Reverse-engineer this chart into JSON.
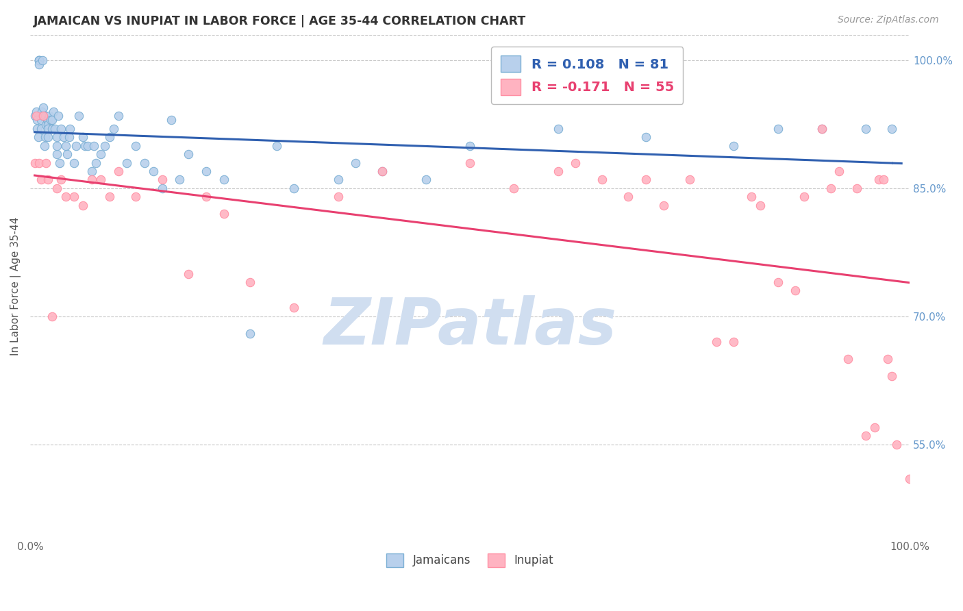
{
  "title": "JAMAICAN VS INUPIAT IN LABOR FORCE | AGE 35-44 CORRELATION CHART",
  "source": "Source: ZipAtlas.com",
  "ylabel": "In Labor Force | Age 35-44",
  "xlim": [
    0.0,
    1.0
  ],
  "ylim": [
    0.44,
    1.03
  ],
  "yticks": [
    0.55,
    0.7,
    0.85,
    1.0
  ],
  "ytick_labels": [
    "55.0%",
    "70.0%",
    "85.0%",
    "100.0%"
  ],
  "xticks": [
    0.0,
    0.2,
    0.4,
    0.6,
    0.8,
    1.0
  ],
  "xtick_labels": [
    "0.0%",
    "",
    "",
    "",
    "",
    "100.0%"
  ],
  "R_jamaican": 0.108,
  "N_jamaican": 81,
  "R_inupiat": -0.171,
  "N_inupiat": 55,
  "blue_scatter_face": "#B8D0EC",
  "blue_scatter_edge": "#7BAFD4",
  "pink_scatter_face": "#FFB3C1",
  "pink_scatter_edge": "#FF8FA3",
  "trend_blue": "#3060B0",
  "trend_pink": "#E84070",
  "watermark_text": "ZIPatlas",
  "watermark_color": "#D0DEF0",
  "background_color": "#FFFFFF",
  "grid_color": "#C8C8C8",
  "title_color": "#333333",
  "axis_right_color": "#6699CC",
  "source_color": "#999999",
  "legend_edge_color": "#BBBBBB",
  "jamaican_x": [
    0.005,
    0.007,
    0.008,
    0.008,
    0.009,
    0.01,
    0.01,
    0.01,
    0.01,
    0.01,
    0.012,
    0.012,
    0.013,
    0.014,
    0.015,
    0.015,
    0.016,
    0.017,
    0.017,
    0.018,
    0.019,
    0.02,
    0.02,
    0.02,
    0.02,
    0.022,
    0.023,
    0.025,
    0.025,
    0.026,
    0.028,
    0.03,
    0.03,
    0.03,
    0.032,
    0.033,
    0.035,
    0.038,
    0.04,
    0.042,
    0.044,
    0.045,
    0.05,
    0.052,
    0.055,
    0.06,
    0.062,
    0.065,
    0.07,
    0.072,
    0.075,
    0.08,
    0.085,
    0.09,
    0.095,
    0.1,
    0.11,
    0.12,
    0.13,
    0.14,
    0.15,
    0.16,
    0.17,
    0.18,
    0.2,
    0.22,
    0.25,
    0.28,
    0.3,
    0.35,
    0.37,
    0.4,
    0.45,
    0.5,
    0.6,
    0.7,
    0.8,
    0.85,
    0.9,
    0.95,
    0.98
  ],
  "jamaican_y": [
    0.935,
    0.94,
    0.92,
    0.93,
    0.91,
    1.0,
    1.0,
    1.0,
    1.0,
    0.995,
    0.92,
    0.93,
    0.94,
    1.0,
    0.935,
    0.945,
    0.9,
    0.91,
    0.935,
    0.925,
    0.93,
    0.93,
    0.925,
    0.92,
    0.91,
    0.935,
    0.93,
    0.92,
    0.93,
    0.94,
    0.92,
    0.89,
    0.9,
    0.91,
    0.935,
    0.88,
    0.92,
    0.91,
    0.9,
    0.89,
    0.91,
    0.92,
    0.88,
    0.9,
    0.935,
    0.91,
    0.9,
    0.9,
    0.87,
    0.9,
    0.88,
    0.89,
    0.9,
    0.91,
    0.92,
    0.935,
    0.88,
    0.9,
    0.88,
    0.87,
    0.85,
    0.93,
    0.86,
    0.89,
    0.87,
    0.86,
    0.68,
    0.9,
    0.85,
    0.86,
    0.88,
    0.87,
    0.86,
    0.9,
    0.92,
    0.91,
    0.9,
    0.92,
    0.92,
    0.92,
    0.92
  ],
  "inupiat_x": [
    0.005,
    0.007,
    0.01,
    0.012,
    0.015,
    0.018,
    0.02,
    0.025,
    0.03,
    0.035,
    0.04,
    0.05,
    0.06,
    0.07,
    0.08,
    0.09,
    0.1,
    0.12,
    0.15,
    0.18,
    0.2,
    0.22,
    0.25,
    0.3,
    0.35,
    0.4,
    0.5,
    0.55,
    0.6,
    0.62,
    0.65,
    0.68,
    0.7,
    0.72,
    0.75,
    0.78,
    0.8,
    0.82,
    0.83,
    0.85,
    0.87,
    0.88,
    0.9,
    0.91,
    0.92,
    0.93,
    0.94,
    0.95,
    0.96,
    0.965,
    0.97,
    0.975,
    0.98,
    0.985,
    1.0
  ],
  "inupiat_y": [
    0.88,
    0.935,
    0.88,
    0.86,
    0.935,
    0.88,
    0.86,
    0.7,
    0.85,
    0.86,
    0.84,
    0.84,
    0.83,
    0.86,
    0.86,
    0.84,
    0.87,
    0.84,
    0.86,
    0.75,
    0.84,
    0.82,
    0.74,
    0.71,
    0.84,
    0.87,
    0.88,
    0.85,
    0.87,
    0.88,
    0.86,
    0.84,
    0.86,
    0.83,
    0.86,
    0.67,
    0.67,
    0.84,
    0.83,
    0.74,
    0.73,
    0.84,
    0.92,
    0.85,
    0.87,
    0.65,
    0.85,
    0.56,
    0.57,
    0.86,
    0.86,
    0.65,
    0.63,
    0.55,
    0.51
  ]
}
